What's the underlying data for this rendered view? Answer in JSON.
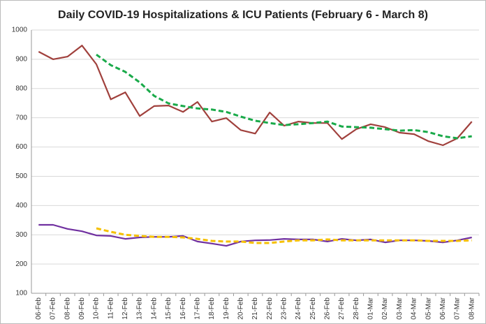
{
  "chart_data": {
    "type": "line",
    "title": "Daily COVID-19 Hospitalizations & ICU Patients (February 6 - March 8)",
    "categories": [
      "06-Feb",
      "07-Feb",
      "08-Feb",
      "09-Feb",
      "10-Feb",
      "11-Feb",
      "12-Feb",
      "13-Feb",
      "14-Feb",
      "15-Feb",
      "16-Feb",
      "17-Feb",
      "18-Feb",
      "19-Feb",
      "20-Feb",
      "21-Feb",
      "22-Feb",
      "23-Feb",
      "24-Feb",
      "25-Feb",
      "26-Feb",
      "27-Feb",
      "28-Feb",
      "01-Mar",
      "02-Mar",
      "03-Mar",
      "04-Mar",
      "05-Mar",
      "06-Mar",
      "07-Mar",
      "08-Mar"
    ],
    "series": [
      {
        "color": "#a0403c",
        "style": "solid",
        "values": [
          926,
          900,
          909,
          947,
          883,
          763,
          787,
          706,
          740,
          742,
          720,
          754,
          687,
          699,
          658,
          646,
          718,
          673,
          687,
          682,
          682,
          627,
          661,
          678,
          668,
          649,
          644,
          620,
          606,
          630,
          687
        ]
      },
      {
        "color": "#1aaa4a",
        "style": "dashed",
        "values": [
          null,
          null,
          null,
          null,
          916,
          880,
          857,
          821,
          775,
          749,
          740,
          732,
          728,
          720,
          704,
          690,
          682,
          675,
          678,
          682,
          687,
          670,
          668,
          666,
          661,
          656,
          658,
          651,
          637,
          630,
          637
        ]
      },
      {
        "color": "#7030a0",
        "style": "solid",
        "values": [
          334,
          334,
          320,
          312,
          298,
          296,
          286,
          291,
          293,
          293,
          296,
          277,
          270,
          262,
          277,
          281,
          282,
          286,
          284,
          284,
          277,
          286,
          281,
          284,
          274,
          281,
          281,
          279,
          274,
          281,
          291
        ]
      },
      {
        "color": "#f5c000",
        "style": "dashed",
        "values": [
          null,
          null,
          null,
          null,
          322,
          310,
          300,
          296,
          293,
          293,
          291,
          286,
          279,
          277,
          277,
          272,
          272,
          277,
          281,
          281,
          284,
          281,
          281,
          281,
          281,
          281,
          281,
          279,
          279,
          279,
          281
        ]
      }
    ],
    "ylim": [
      100,
      1000
    ],
    "yticks": [
      100,
      200,
      300,
      400,
      500,
      600,
      700,
      800,
      900,
      1000
    ],
    "grid": true
  }
}
